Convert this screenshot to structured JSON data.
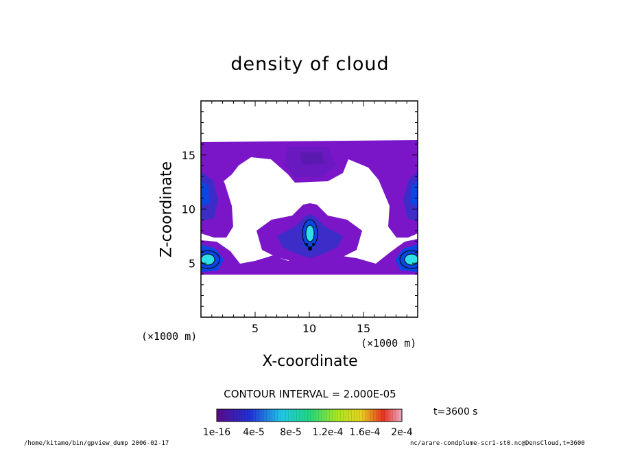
{
  "chart_data": {
    "type": "heatmap",
    "title": "density of cloud",
    "xlabel": "X-coordinate",
    "ylabel": "Z-coordinate",
    "x_unit": "(×1000 m)",
    "y_unit": "(×1000 m)",
    "x_ticks": [
      5,
      10,
      15
    ],
    "y_ticks": [
      5,
      10,
      15
    ],
    "xlim": [
      0,
      20
    ],
    "ylim": [
      0,
      20
    ],
    "contour_interval": "CONTOUR INTERVAL = 2.000E-05",
    "colorbar_ticks": [
      "1e-16",
      "4e-5",
      "8e-5",
      "1.2e-4",
      "1.6e-4",
      "2e-4"
    ],
    "colorbar_range": [
      0,
      0.0002
    ],
    "time_label": "t=3600 s",
    "colors": {
      "low": "#7a14c8",
      "mid_low": "#3f2ec8",
      "mid": "#0a46e6",
      "cyan": "#2ee0e6",
      "white_region": "#ffffff"
    }
  },
  "footer": {
    "left": "/home/kitamo/bin/gpview_dump  2006-02-17",
    "right": "nc/arare-condplume-scr1-st0.nc@DensCloud,t=3600"
  }
}
